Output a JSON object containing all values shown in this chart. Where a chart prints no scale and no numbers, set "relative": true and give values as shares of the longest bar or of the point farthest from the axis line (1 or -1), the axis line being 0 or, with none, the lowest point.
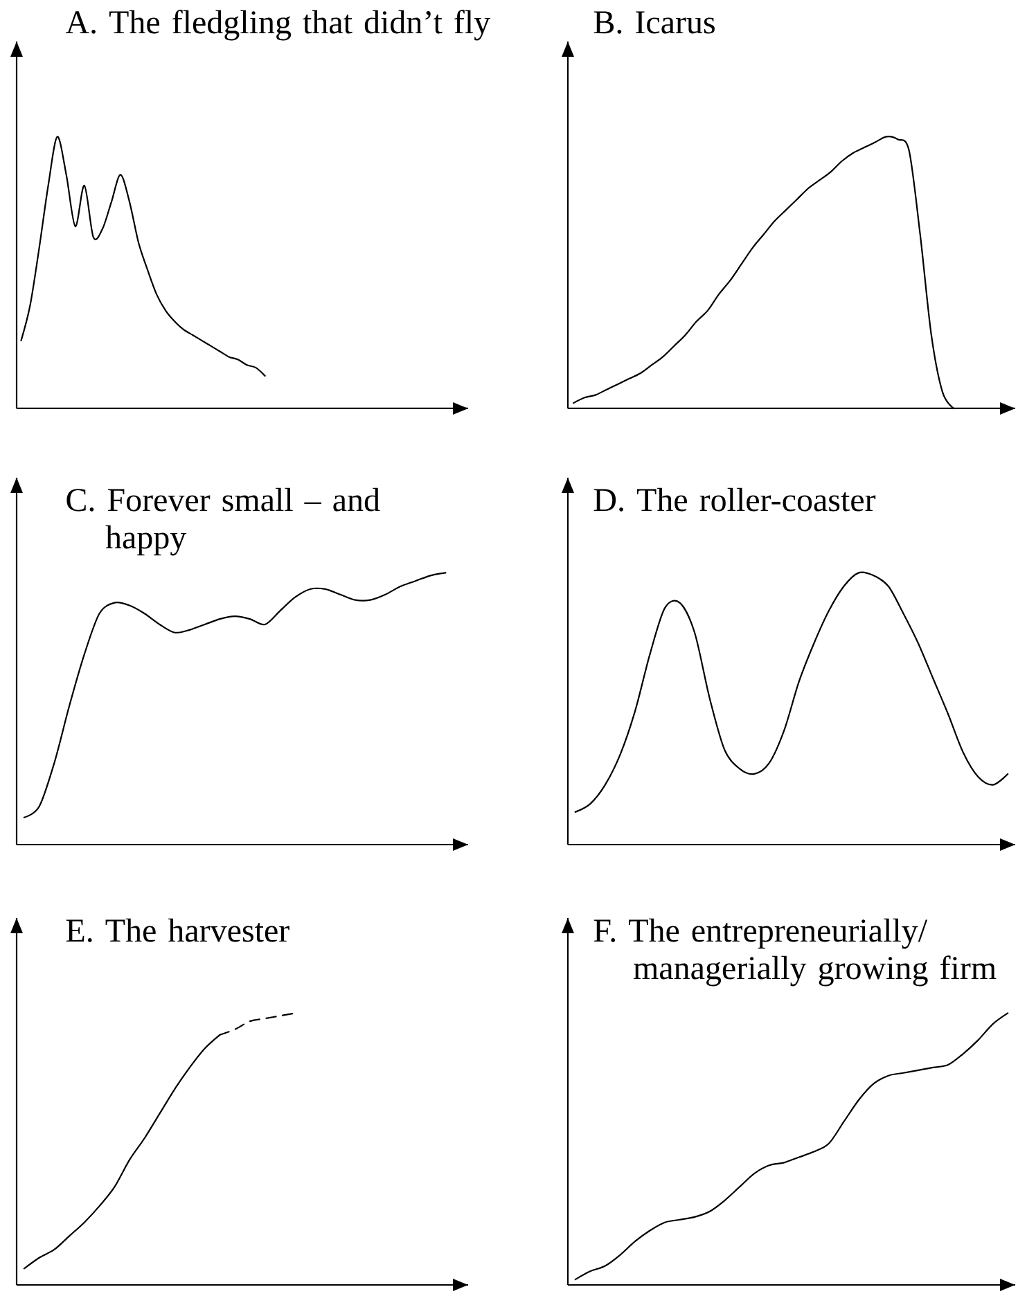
{
  "chart_data": [
    {
      "type": "line",
      "title": "A. The fledgling that didn’t fly",
      "relative": true,
      "marker": "none",
      "color": "#000000",
      "categories": [
        null,
        null,
        null,
        null,
        null,
        null,
        null,
        null,
        null,
        null,
        null,
        null,
        null,
        null,
        null,
        null,
        null,
        null,
        null,
        null,
        null,
        null,
        null,
        null,
        null,
        null,
        null,
        null,
        null,
        null,
        null,
        null,
        null,
        null,
        null,
        null,
        null,
        null,
        null,
        null,
        null,
        null,
        null,
        null,
        null,
        null,
        null,
        null,
        null,
        null
      ],
      "values": [
        0.25,
        0.38,
        0.59,
        0.82,
        1,
        0.86,
        0.67,
        0.82,
        0.63,
        0.66,
        0.76,
        0.86,
        0.76,
        0.61,
        0.51,
        0.42,
        0.36,
        0.32,
        0.29,
        0.27,
        0.25,
        0.23,
        0.21,
        0.19,
        0.18,
        0.16,
        0.15,
        0.12,
        null,
        null,
        null,
        null,
        null,
        null,
        null,
        null,
        null,
        null,
        null,
        null,
        null,
        null,
        null,
        null,
        null,
        null,
        null,
        null,
        null,
        null
      ]
    },
    {
      "type": "line",
      "title": "B. Icarus",
      "relative": true,
      "marker": "none",
      "color": "#000000",
      "categories": [
        null,
        null,
        null,
        null,
        null,
        null,
        null,
        null,
        null,
        null,
        null,
        null,
        null,
        null,
        null,
        null,
        null,
        null,
        null,
        null,
        null,
        null,
        null,
        null,
        null,
        null,
        null,
        null,
        null,
        null,
        null,
        null,
        null,
        null,
        null,
        null,
        null,
        null,
        null,
        null
      ],
      "values": [
        0.02,
        0.04,
        0.05,
        0.07,
        0.09,
        0.11,
        0.13,
        0.16,
        0.19,
        0.23,
        0.27,
        0.32,
        0.36,
        0.42,
        0.47,
        0.53,
        0.59,
        0.64,
        0.69,
        0.73,
        0.77,
        0.81,
        0.84,
        0.87,
        0.91,
        0.94,
        0.96,
        0.98,
        1,
        0.99,
        0.95,
        0.64,
        0.27,
        0.06,
        0,
        null,
        null,
        null,
        null,
        null
      ]
    },
    {
      "type": "line",
      "title": "C. Forever small – and happy",
      "relative": true,
      "marker": "none",
      "color": "#000000",
      "categories": [
        null,
        null,
        null,
        null,
        null,
        null,
        null,
        null,
        null,
        null,
        null,
        null,
        null,
        null,
        null,
        null,
        null,
        null,
        null,
        null,
        null,
        null,
        null,
        null,
        null,
        null,
        null,
        null,
        null,
        null
      ],
      "values": [
        0.1,
        0.14,
        0.3,
        0.51,
        0.7,
        0.85,
        0.89,
        0.88,
        0.85,
        0.81,
        0.78,
        0.79,
        0.81,
        0.83,
        0.84,
        0.83,
        0.81,
        0.86,
        0.91,
        0.94,
        0.94,
        0.92,
        0.9,
        0.9,
        0.92,
        0.95,
        0.97,
        0.99,
        1,
        null
      ]
    },
    {
      "type": "line",
      "title": "D. The roller-coaster",
      "relative": true,
      "marker": "none",
      "color": "#000000",
      "categories": [
        null,
        null,
        null,
        null,
        null,
        null,
        null,
        null,
        null,
        null,
        null,
        null,
        null,
        null,
        null,
        null,
        null,
        null,
        null,
        null,
        null,
        null,
        null,
        null,
        null,
        null,
        null,
        null,
        null,
        null
      ],
      "values": [
        0.12,
        0.15,
        0.22,
        0.33,
        0.49,
        0.7,
        0.87,
        0.89,
        0.78,
        0.54,
        0.35,
        0.28,
        0.26,
        0.3,
        0.42,
        0.6,
        0.74,
        0.86,
        0.95,
        1,
        0.99,
        0.95,
        0.85,
        0.74,
        0.61,
        0.48,
        0.34,
        0.25,
        0.22,
        0.26
      ]
    },
    {
      "type": "line",
      "title": "E. The harvester",
      "relative": true,
      "marker": "none",
      "categories": [
        null,
        null,
        null,
        null,
        null,
        null,
        null,
        null,
        null,
        null,
        null,
        null,
        null,
        null,
        null,
        null,
        null,
        null,
        null,
        null,
        null,
        null,
        null,
        null,
        null,
        null,
        null,
        null,
        null,
        null
      ],
      "series": [
        {
          "color": "#000000",
          "line_style": "solid",
          "values": [
            0.06,
            0.1,
            0.13,
            0.18,
            0.23,
            0.29,
            0.36,
            0.46,
            0.54,
            0.63,
            0.72,
            0.8,
            0.87,
            0.92,
            null,
            null,
            null,
            null,
            null,
            null,
            null,
            null,
            null,
            null,
            null,
            null,
            null,
            null,
            null,
            null
          ]
        },
        {
          "color": "#000000",
          "line_style": "dashed",
          "values": [
            null,
            null,
            null,
            null,
            null,
            null,
            null,
            null,
            null,
            null,
            null,
            null,
            null,
            0.92,
            0.94,
            0.97,
            0.98,
            0.99,
            1,
            null,
            null,
            null,
            null,
            null,
            null,
            null,
            null,
            null,
            null,
            null
          ]
        }
      ]
    },
    {
      "type": "line",
      "title": "F. The entrepreneurially/managerially growing firm",
      "relative": true,
      "marker": "none",
      "color": "#000000",
      "categories": [
        null,
        null,
        null,
        null,
        null,
        null,
        null,
        null,
        null,
        null,
        null,
        null,
        null,
        null,
        null,
        null,
        null,
        null,
        null,
        null,
        null,
        null,
        null,
        null,
        null,
        null,
        null,
        null,
        null,
        null
      ],
      "values": [
        0.02,
        0.05,
        0.07,
        0.11,
        0.16,
        0.2,
        0.23,
        0.24,
        0.25,
        0.27,
        0.31,
        0.36,
        0.41,
        0.44,
        0.45,
        0.47,
        0.49,
        0.52,
        0.6,
        0.68,
        0.74,
        0.77,
        0.78,
        0.79,
        0.8,
        0.81,
        0.85,
        0.9,
        0.96,
        1
      ]
    }
  ]
}
